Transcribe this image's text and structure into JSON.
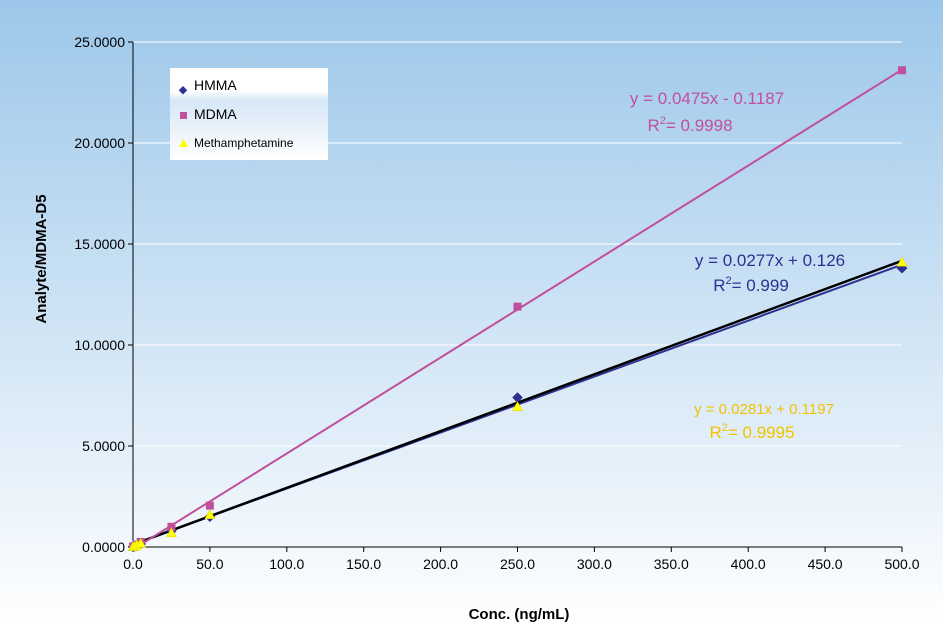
{
  "chart_data": {
    "type": "scatter",
    "xlabel": "Conc. (ng/mL)",
    "ylabel": "Analyte/MDMA-D5",
    "xlim": [
      0,
      500
    ],
    "ylim": [
      0,
      25
    ],
    "x_ticks": [
      "0.0",
      "50.0",
      "100.0",
      "150.0",
      "200.0",
      "250.0",
      "300.0",
      "350.0",
      "400.0",
      "450.0",
      "500.0"
    ],
    "y_ticks": [
      "0.0000",
      "5.0000",
      "10.0000",
      "15.0000",
      "20.0000",
      "25.0000"
    ],
    "grid": "horizontal",
    "legend_position": "top-left",
    "series": [
      {
        "name": "HMMA",
        "marker": "diamond",
        "color": "#2e3192",
        "x": [
          0,
          1,
          2.5,
          5,
          25,
          50,
          250,
          500
        ],
        "y": [
          0.01,
          0.03,
          0.08,
          0.15,
          0.8,
          1.5,
          7.4,
          13.8
        ],
        "fit": {
          "slope": 0.0277,
          "intercept": 0.126,
          "line_color": "#2e3192"
        },
        "equation": "y = 0.0277x + 0.126",
        "r2_label": "R",
        "r2_sup": "2",
        "r2_value": "= 0.999",
        "equation_color": "#2e3192"
      },
      {
        "name": "MDMA",
        "marker": "square",
        "color": "#c0509c",
        "x": [
          0,
          1,
          2.5,
          5,
          25,
          50,
          250,
          500
        ],
        "y": [
          0.01,
          0.05,
          0.12,
          0.25,
          1.0,
          2.05,
          11.9,
          23.6
        ],
        "fit": {
          "slope": 0.0475,
          "intercept": -0.1187,
          "line_color": "#c0509c"
        },
        "equation": "y = 0.0475x - 0.1187",
        "r2_label": "R",
        "r2_sup": "2",
        "r2_value": "= 0.9998",
        "equation_color": "#c0509c"
      },
      {
        "name": "Methamphetamine",
        "marker": "triangle",
        "color": "#ffff00",
        "x": [
          0,
          1,
          2.5,
          5,
          25,
          50,
          250,
          500
        ],
        "y": [
          0.01,
          0.03,
          0.1,
          0.18,
          0.7,
          1.6,
          6.95,
          14.1
        ],
        "fit": {
          "slope": 0.0281,
          "intercept": 0.1197,
          "line_color": "#000000"
        },
        "equation": "y = 0.0281x + 0.1197",
        "r2_label": "R",
        "r2_sup": "2",
        "r2_value": "= 0.9995",
        "equation_color": "#f2c200"
      }
    ]
  }
}
